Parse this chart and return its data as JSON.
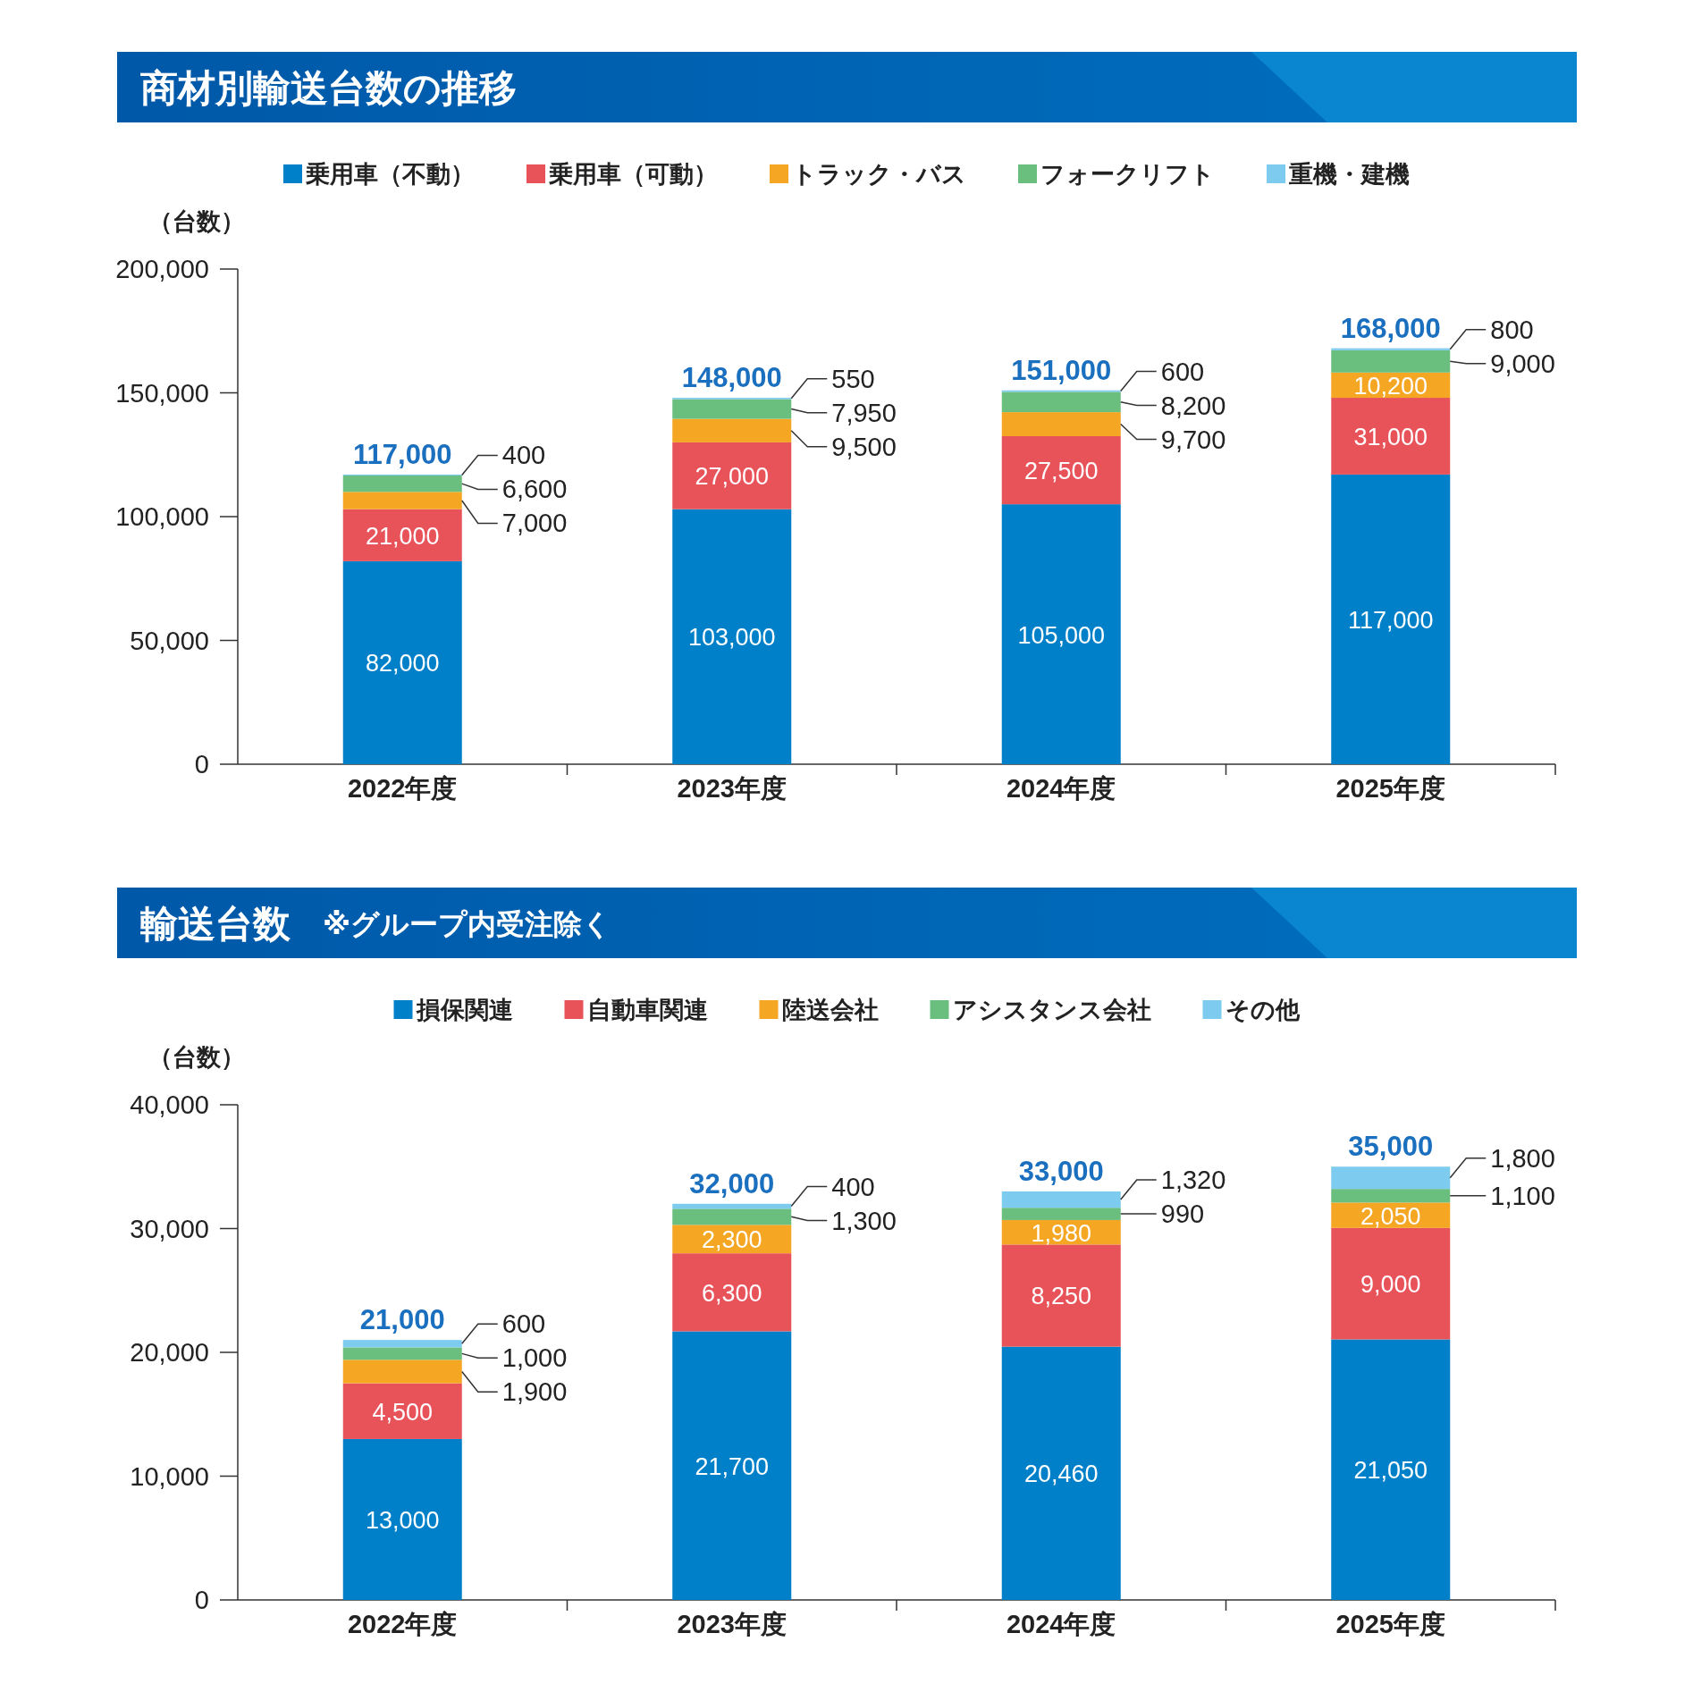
{
  "chart_data": [
    {
      "type": "bar",
      "title": "商材別輸送台数の推移",
      "ylabel": "（台数）",
      "stacked": true,
      "legend": "top",
      "categories": [
        "2022年度",
        "2023年度",
        "2024年度",
        "2025年度"
      ],
      "ylim": [
        0,
        200000
      ],
      "yticks": [
        {
          "value": 0,
          "label": "0"
        },
        {
          "value": 50000,
          "label": "50,000"
        },
        {
          "value": 100000,
          "label": "100,000"
        },
        {
          "value": 150000,
          "label": "150,000"
        },
        {
          "value": 200000,
          "label": "200,000"
        }
      ],
      "series": [
        {
          "name": "乗用車（不動）",
          "color": "#0080c8",
          "values": [
            82000,
            103000,
            105000,
            117000
          ],
          "value_labels": [
            "82,000",
            "103,000",
            "105,000",
            "117,000"
          ]
        },
        {
          "name": "乗用車（可動）",
          "color": "#e8535a",
          "values": [
            21000,
            27000,
            27500,
            31000
          ],
          "value_labels": [
            "21,000",
            "27,000",
            "27,500",
            "31,000"
          ]
        },
        {
          "name": "トラック・バス",
          "color": "#f5a623",
          "values": [
            7000,
            9500,
            9700,
            10200
          ],
          "value_labels": [
            "7,000",
            "9,500",
            "9,700",
            "10,200"
          ]
        },
        {
          "name": "フォークリフト",
          "color": "#6abf7f",
          "values": [
            6600,
            7950,
            8200,
            9000
          ],
          "value_labels": [
            "6,600",
            "7,950",
            "8,200",
            "9,000"
          ]
        },
        {
          "name": "重機・建機",
          "color": "#7dcbef",
          "values": [
            400,
            550,
            600,
            800
          ],
          "value_labels": [
            "400",
            "550",
            "600",
            "800"
          ]
        }
      ],
      "totals": [
        "117,000",
        "148,000",
        "151,000",
        "168,000"
      ]
    },
    {
      "type": "bar",
      "title": "輸送台数",
      "subtitle": "※グループ内受注除く",
      "ylabel": "（台数）",
      "stacked": true,
      "legend": "top",
      "categories": [
        "2022年度",
        "2023年度",
        "2024年度",
        "2025年度"
      ],
      "ylim": [
        0,
        40000
      ],
      "yticks": [
        {
          "value": 0,
          "label": "0"
        },
        {
          "value": 10000,
          "label": "10,000"
        },
        {
          "value": 20000,
          "label": "20,000"
        },
        {
          "value": 30000,
          "label": "30,000"
        },
        {
          "value": 40000,
          "label": "40,000"
        }
      ],
      "series": [
        {
          "name": "損保関連",
          "color": "#0080c8",
          "values": [
            13000,
            21700,
            20460,
            21050
          ],
          "value_labels": [
            "13,000",
            "21,700",
            "20,460",
            "21,050"
          ]
        },
        {
          "name": "自動車関連",
          "color": "#e8535a",
          "values": [
            4500,
            6300,
            8250,
            9000
          ],
          "value_labels": [
            "4,500",
            "6,300",
            "8,250",
            "9,000"
          ]
        },
        {
          "name": "陸送会社",
          "color": "#f5a623",
          "values": [
            1900,
            2300,
            1980,
            2050
          ],
          "value_labels": [
            "1,900",
            "2,300",
            "1,980",
            "2,050"
          ]
        },
        {
          "name": "アシスタンス会社",
          "color": "#6abf7f",
          "values": [
            1000,
            1300,
            990,
            1100
          ],
          "value_labels": [
            "1,000",
            "1,300",
            "990",
            "1,100"
          ]
        },
        {
          "name": "その他",
          "color": "#7dcbef",
          "values": [
            600,
            400,
            1320,
            1800
          ],
          "value_labels": [
            "600",
            "400",
            "1,320",
            "1,800"
          ]
        }
      ],
      "totals": [
        "21,000",
        "32,000",
        "33,000",
        "35,000"
      ]
    }
  ]
}
